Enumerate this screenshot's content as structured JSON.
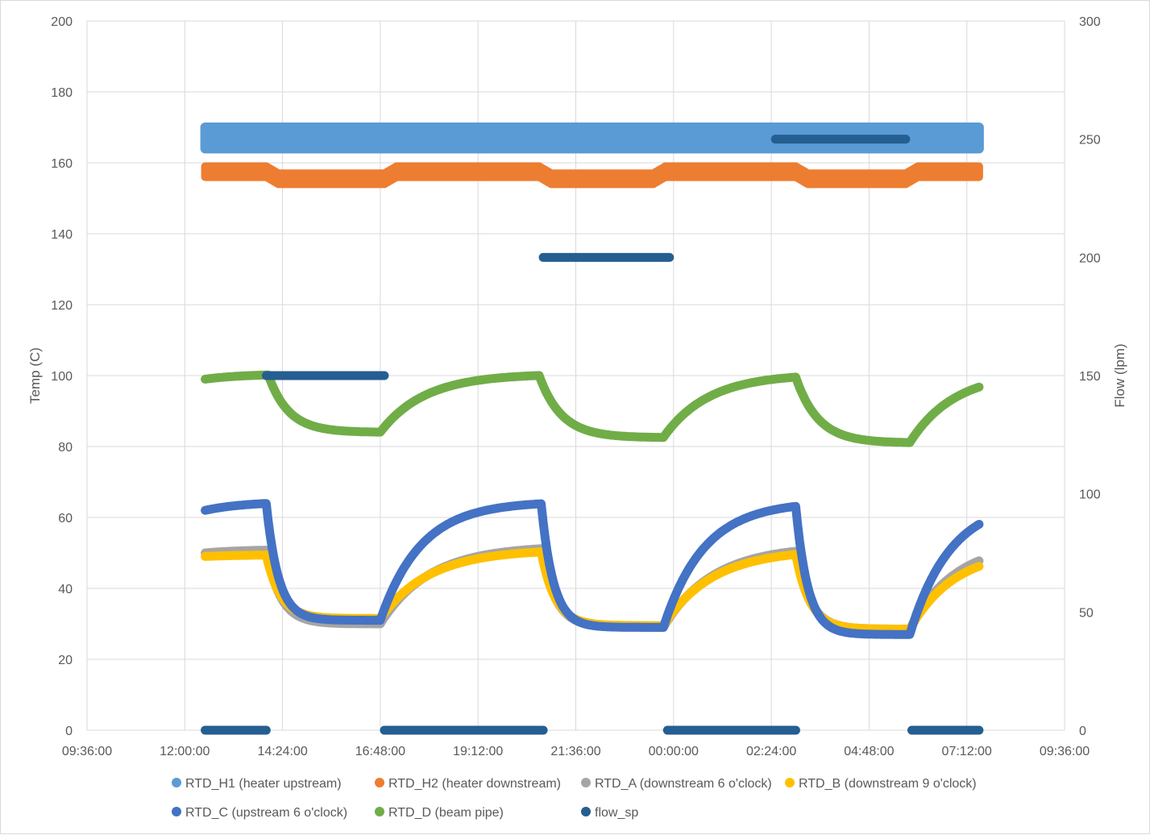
{
  "chart_data": {
    "type": "line",
    "ylabel": "Temp (C)",
    "y2label": "Flow (lpm)",
    "ylim": [
      0,
      200
    ],
    "y2lim": [
      0,
      300
    ],
    "yticks": [
      "0",
      "20",
      "40",
      "60",
      "80",
      "100",
      "120",
      "140",
      "160",
      "180",
      "200"
    ],
    "y2ticks": [
      "0",
      "50",
      "100",
      "150",
      "200",
      "250",
      "300"
    ],
    "xticks": [
      "09:36:00",
      "12:00:00",
      "14:24:00",
      "16:48:00",
      "19:12:00",
      "21:36:00",
      "00:00:00",
      "02:24:00",
      "04:48:00",
      "07:12:00",
      "09:36:00"
    ],
    "grid": true,
    "legend_position": "bottom",
    "colors": {
      "RTD_H1 (heater upstream)": "#5b9bd5",
      "RTD_H2 (heater downstream)": "#ed7d31",
      "RTD_A (downstream 6 o'clock)": "#a5a5a5",
      "RTD_B (downstream 9 o'clock)": "#ffc000",
      "RTD_C (upstream 6 o'clock)": "#4472c4",
      "RTD_D (beam pipe)": "#70ad47",
      "flow_sp": "#255e91"
    },
    "series": [
      {
        "name": "RTD_H1 (heater upstream)",
        "axis": "primary",
        "style": "band",
        "x_hours": [
          12.5,
          31.5
        ],
        "band": [
          164,
          170
        ]
      },
      {
        "name": "RTD_H2 (heater downstream)",
        "axis": "primary",
        "style": "band",
        "points": [
          [
            12.5,
            156,
            159
          ],
          [
            14.0,
            156,
            159
          ],
          [
            14.3,
            154,
            157
          ],
          [
            16.9,
            154,
            157
          ],
          [
            17.2,
            156,
            159
          ],
          [
            20.7,
            156,
            159
          ],
          [
            21.0,
            154,
            157
          ],
          [
            23.5,
            154,
            157
          ],
          [
            23.8,
            156,
            159
          ],
          [
            27.0,
            156,
            159
          ],
          [
            27.3,
            154,
            157
          ],
          [
            29.7,
            154,
            157
          ],
          [
            30.0,
            156,
            159
          ],
          [
            31.5,
            156,
            159
          ]
        ]
      },
      {
        "name": "RTD_D (beam pipe)",
        "axis": "primary",
        "style": "relaxation",
        "start": 99,
        "segments": [
          {
            "t0": 12.5,
            "t1": 14.05,
            "target": 100.5,
            "tau": 1.0
          },
          {
            "t0": 14.05,
            "t1": 16.8,
            "target": 84,
            "tau": 0.5
          },
          {
            "t0": 16.8,
            "t1": 20.7,
            "target": 100.5,
            "tau": 1.1
          },
          {
            "t0": 20.7,
            "t1": 23.75,
            "target": 82.5,
            "tau": 0.55
          },
          {
            "t0": 23.75,
            "t1": 27.0,
            "target": 100.5,
            "tau": 1.1
          },
          {
            "t0": 27.0,
            "t1": 29.8,
            "target": 81,
            "tau": 0.55
          },
          {
            "t0": 29.8,
            "t1": 31.5,
            "target": 101,
            "tau": 1.1
          }
        ]
      },
      {
        "name": "RTD_A (downstream 6 o'clock)",
        "axis": "primary",
        "style": "relaxation",
        "start": 50,
        "segments": [
          {
            "t0": 12.5,
            "t1": 14.0,
            "target": 51,
            "tau": 1.0
          },
          {
            "t0": 14.0,
            "t1": 16.8,
            "target": 30,
            "tau": 0.35
          },
          {
            "t0": 16.8,
            "t1": 20.75,
            "target": 52,
            "tau": 1.2
          },
          {
            "t0": 20.75,
            "t1": 23.75,
            "target": 29,
            "tau": 0.35
          },
          {
            "t0": 23.75,
            "t1": 27.0,
            "target": 52,
            "tau": 1.2
          },
          {
            "t0": 27.0,
            "t1": 29.8,
            "target": 28.5,
            "tau": 0.35
          },
          {
            "t0": 29.8,
            "t1": 31.5,
            "target": 53,
            "tau": 1.1
          }
        ]
      },
      {
        "name": "RTD_B (downstream 9 o'clock)",
        "axis": "primary",
        "style": "relaxation",
        "start": 49,
        "segments": [
          {
            "t0": 12.5,
            "t1": 14.0,
            "target": 49.5,
            "tau": 1.0
          },
          {
            "t0": 14.0,
            "t1": 16.8,
            "target": 31.5,
            "tau": 0.35
          },
          {
            "t0": 16.8,
            "t1": 20.75,
            "target": 51,
            "tau": 1.2
          },
          {
            "t0": 20.75,
            "t1": 23.75,
            "target": 29.5,
            "tau": 0.35
          },
          {
            "t0": 23.75,
            "t1": 27.0,
            "target": 51,
            "tau": 1.2
          },
          {
            "t0": 27.0,
            "t1": 29.8,
            "target": 28.5,
            "tau": 0.35
          },
          {
            "t0": 29.8,
            "t1": 31.5,
            "target": 51,
            "tau": 1.1
          }
        ]
      },
      {
        "name": "RTD_C (upstream 6 o'clock)",
        "axis": "primary",
        "style": "relaxation",
        "start": 62,
        "segments": [
          {
            "t0": 12.5,
            "t1": 14.0,
            "target": 64.5,
            "tau": 1.0
          },
          {
            "t0": 14.0,
            "t1": 16.8,
            "target": 31,
            "tau": 0.3
          },
          {
            "t0": 16.8,
            "t1": 20.75,
            "target": 64.5,
            "tau": 1.0
          },
          {
            "t0": 20.75,
            "t1": 23.75,
            "target": 29,
            "tau": 0.3
          },
          {
            "t0": 23.75,
            "t1": 27.0,
            "target": 64.5,
            "tau": 1.0
          },
          {
            "t0": 27.0,
            "t1": 29.8,
            "target": 27,
            "tau": 0.3
          },
          {
            "t0": 29.8,
            "t1": 31.5,
            "target": 65,
            "tau": 1.0
          }
        ]
      },
      {
        "name": "flow_sp",
        "axis": "secondary",
        "style": "segments",
        "segments": [
          {
            "x0": 12.5,
            "x1": 14.0,
            "y": 0
          },
          {
            "x0": 14.0,
            "x1": 16.9,
            "y": 150
          },
          {
            "x0": 16.9,
            "x1": 20.8,
            "y": 0
          },
          {
            "x0": 20.8,
            "x1": 23.9,
            "y": 200
          },
          {
            "x0": 23.85,
            "x1": 27.0,
            "y": 0
          },
          {
            "x0": 26.5,
            "x1": 29.7,
            "y": 250
          },
          {
            "x0": 29.85,
            "x1": 31.5,
            "y": 0
          }
        ]
      }
    ]
  }
}
